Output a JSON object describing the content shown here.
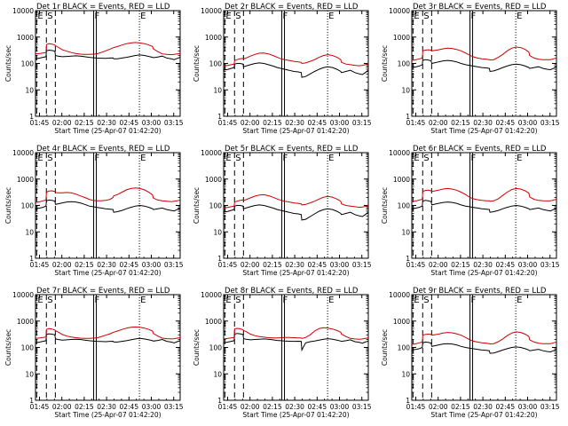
{
  "chart_data": {
    "common": {
      "type": "line",
      "xlabel": "Start Time (25-Apr-07 01:42:20)",
      "ylabel": "Counts/sec",
      "y_scale": "log",
      "ylim": [
        1,
        10000
      ],
      "y_ticks": [
        1,
        10,
        100,
        1000,
        10000
      ],
      "y_tick_labels": [
        "1",
        "10",
        "100",
        "1000",
        "10000"
      ],
      "xlim_minutes": [
        0,
        97
      ],
      "x_tick_minutes": [
        2.67,
        17.67,
        32.67,
        47.67,
        62.67,
        77.67,
        92.67
      ],
      "x_tick_labels": [
        "01:45",
        "02:00",
        "02:15",
        "02:30",
        "02:45",
        "03:00",
        "03:15"
      ],
      "legend": "in title",
      "markers": [
        {
          "label": "E",
          "x": 0.8,
          "style": "dashed"
        },
        {
          "label": "S",
          "x": 7.3,
          "style": "dashed"
        },
        {
          "label": "",
          "x": 13.3,
          "style": "dashed"
        },
        {
          "label": "F",
          "x": 39.0,
          "style": "solid"
        },
        {
          "label": "E",
          "x": 69.7,
          "style": "dotted"
        }
      ],
      "x": [
        0,
        3,
        5,
        7,
        7.4,
        9,
        11,
        13,
        13.4,
        15,
        18,
        21,
        24,
        27,
        30,
        33,
        36,
        38.5,
        41,
        44,
        47,
        50,
        52,
        52.4,
        55,
        58,
        61,
        64,
        67,
        70,
        73,
        76,
        78.5,
        79,
        82,
        85,
        88,
        91,
        93,
        95,
        97
      ]
    },
    "panels": [
      {
        "title": "Det 1r BLACK = Events, RED = LLD",
        "series": [
          {
            "name": "Events",
            "color": "#000000",
            "values": [
              150,
              160,
              170,
              180,
              300,
              320,
              310,
              290,
              200,
              190,
              180,
              185,
              190,
              195,
              190,
              180,
              170,
              165,
              160,
              158,
              156,
              160,
              162,
              150,
              150,
              160,
              170,
              185,
              200,
              210,
              200,
              185,
              170,
              165,
              175,
              190,
              160,
              150,
              140,
              155,
              170
            ]
          },
          {
            "name": "LLD",
            "color": "#cc0000",
            "values": [
              230,
              240,
              250,
              260,
              520,
              560,
              540,
              500,
              470,
              420,
              330,
              290,
              260,
              240,
              225,
              220,
              220,
              225,
              230,
              260,
              300,
              350,
              390,
              400,
              440,
              500,
              560,
              600,
              620,
              600,
              560,
              500,
              440,
              360,
              280,
              230,
              220,
              215,
              220,
              230,
              240
            ]
          }
        ]
      },
      {
        "title": "Det 2r BLACK = Events, RED = LLD",
        "series": [
          {
            "name": "Events",
            "color": "#000000",
            "values": [
              55,
              60,
              65,
              70,
              95,
              100,
              100,
              95,
              75,
              80,
              90,
              100,
              105,
              100,
              90,
              80,
              70,
              65,
              60,
              55,
              50,
              48,
              45,
              30,
              32,
              40,
              50,
              60,
              70,
              75,
              70,
              60,
              50,
              45,
              50,
              55,
              45,
              40,
              38,
              45,
              55
            ]
          },
          {
            "name": "LLD",
            "color": "#cc0000",
            "values": [
              80,
              85,
              90,
              95,
              130,
              140,
              150,
              155,
              150,
              160,
              190,
              220,
              245,
              250,
              230,
              200,
              170,
              150,
              140,
              130,
              120,
              115,
              110,
              100,
              105,
              120,
              140,
              170,
              200,
              215,
              200,
              170,
              140,
              110,
              95,
              90,
              85,
              82,
              85,
              90,
              100
            ]
          }
        ]
      },
      {
        "title": "Det 3r BLACK = Events, RED = LLD",
        "series": [
          {
            "name": "Events",
            "color": "#000000",
            "values": [
              70,
              75,
              80,
              90,
              130,
              140,
              135,
              125,
              100,
              105,
              115,
              125,
              130,
              125,
              115,
              100,
              90,
              85,
              80,
              75,
              70,
              68,
              65,
              50,
              52,
              60,
              70,
              80,
              90,
              95,
              90,
              80,
              70,
              65,
              70,
              75,
              65,
              60,
              58,
              65,
              75
            ]
          },
          {
            "name": "LLD",
            "color": "#cc0000",
            "values": [
              130,
              140,
              150,
              160,
              300,
              320,
              330,
              320,
              300,
              310,
              330,
              360,
              380,
              370,
              340,
              300,
              250,
              210,
              180,
              160,
              150,
              145,
              140,
              135,
              140,
              170,
              220,
              300,
              380,
              420,
              400,
              340,
              270,
              200,
              160,
              145,
              140,
              138,
              140,
              150,
              160
            ]
          }
        ]
      },
      {
        "title": "Det 4r BLACK = Events, RED = LLD",
        "series": [
          {
            "name": "Events",
            "color": "#000000",
            "values": [
              75,
              80,
              85,
              95,
              150,
              160,
              155,
              145,
              110,
              115,
              125,
              135,
              140,
              135,
              125,
              110,
              95,
              90,
              85,
              80,
              75,
              72,
              70,
              55,
              58,
              65,
              75,
              85,
              95,
              100,
              95,
              85,
              75,
              70,
              75,
              80,
              70,
              65,
              62,
              70,
              80
            ]
          },
          {
            "name": "LLD",
            "color": "#cc0000",
            "values": [
              130,
              140,
              150,
              160,
              320,
              350,
              360,
              340,
              310,
              300,
              300,
              310,
              300,
              270,
              230,
              200,
              170,
              155,
              150,
              150,
              155,
              170,
              200,
              230,
              260,
              320,
              390,
              440,
              460,
              440,
              390,
              320,
              250,
              190,
              160,
              150,
              145,
              140,
              145,
              150,
              160
            ]
          }
        ]
      },
      {
        "title": "Det 5r BLACK = Events, RED = LLD",
        "series": [
          {
            "name": "Events",
            "color": "#000000",
            "values": [
              55,
              60,
              65,
              70,
              95,
              100,
              100,
              95,
              75,
              80,
              90,
              100,
              105,
              100,
              90,
              80,
              70,
              65,
              60,
              55,
              50,
              48,
              45,
              28,
              30,
              38,
              48,
              60,
              70,
              75,
              70,
              60,
              50,
              45,
              50,
              55,
              45,
              40,
              38,
              45,
              55
            ]
          },
          {
            "name": "LLD",
            "color": "#cc0000",
            "values": [
              80,
              85,
              90,
              95,
              135,
              145,
              155,
              160,
              155,
              165,
              195,
              225,
              250,
              255,
              235,
              205,
              175,
              155,
              145,
              135,
              125,
              120,
              115,
              105,
              110,
              125,
              145,
              175,
              205,
              220,
              205,
              175,
              145,
              115,
              100,
              95,
              90,
              85,
              88,
              92,
              100
            ]
          }
        ]
      },
      {
        "title": "Det 6r BLACK = Events, RED = LLD",
        "series": [
          {
            "name": "Events",
            "color": "#000000",
            "values": [
              75,
              80,
              85,
              95,
              145,
              155,
              150,
              140,
              105,
              110,
              120,
              130,
              135,
              130,
              120,
              105,
              95,
              90,
              85,
              80,
              75,
              72,
              70,
              55,
              58,
              65,
              75,
              85,
              95,
              100,
              95,
              85,
              75,
              70,
              75,
              80,
              70,
              65,
              62,
              70,
              80
            ]
          },
          {
            "name": "LLD",
            "color": "#cc0000",
            "values": [
              140,
              150,
              160,
              170,
              340,
              370,
              380,
              360,
              340,
              350,
              380,
              420,
              440,
              420,
              380,
              320,
              260,
              210,
              180,
              165,
              155,
              150,
              150,
              145,
              150,
              180,
              240,
              320,
              400,
              440,
              420,
              360,
              290,
              210,
              170,
              155,
              150,
              148,
              150,
              160,
              170
            ]
          }
        ]
      },
      {
        "title": "Det 7r BLACK = Events, RED = LLD",
        "series": [
          {
            "name": "Events",
            "color": "#000000",
            "values": [
              150,
              160,
              170,
              180,
              310,
              330,
              320,
              300,
              210,
              200,
              190,
              195,
              200,
              205,
              200,
              190,
              180,
              175,
              170,
              168,
              166,
              170,
              172,
              160,
              160,
              170,
              180,
              195,
              210,
              220,
              210,
              195,
              180,
              175,
              185,
              200,
              170,
              160,
              150,
              165,
              180
            ]
          },
          {
            "name": "LLD",
            "color": "#cc0000",
            "values": [
              220,
              230,
              240,
              250,
              480,
              520,
              500,
              460,
              430,
              390,
              310,
              270,
              250,
              235,
              225,
              220,
              220,
              225,
              230,
              255,
              290,
              330,
              370,
              380,
              420,
              480,
              540,
              580,
              600,
              580,
              540,
              480,
              420,
              340,
              270,
              225,
              215,
              210,
              215,
              225,
              235
            ]
          }
        ]
      },
      {
        "title": "Det 8r BLACK = Events, RED = LLD",
        "series": [
          {
            "name": "Events",
            "color": "#000000",
            "values": [
              150,
              160,
              170,
              180,
              320,
              340,
              330,
              310,
              215,
              205,
              195,
              200,
              205,
              210,
              205,
              195,
              185,
              180,
              175,
              172,
              170,
              172,
              170,
              80,
              150,
              165,
              175,
              190,
              205,
              215,
              205,
              190,
              175,
              170,
              180,
              195,
              165,
              155,
              145,
              160,
              175
            ]
          },
          {
            "name": "LLD",
            "color": "#cc0000",
            "values": [
              210,
              220,
              230,
              240,
              500,
              530,
              510,
              470,
              440,
              400,
              320,
              280,
              260,
              245,
              235,
              230,
              230,
              235,
              240,
              240,
              235,
              230,
              230,
              220,
              240,
              300,
              420,
              520,
              560,
              540,
              500,
              440,
              380,
              320,
              260,
              220,
              210,
              205,
              210,
              220,
              230
            ]
          }
        ]
      },
      {
        "title": "Det 9r BLACK = Events, RED = LLD",
        "series": [
          {
            "name": "Events",
            "color": "#000000",
            "values": [
              80,
              85,
              90,
              100,
              150,
              160,
              155,
              145,
              110,
              115,
              125,
              135,
              140,
              135,
              125,
              110,
              100,
              95,
              90,
              85,
              80,
              78,
              75,
              60,
              62,
              70,
              80,
              90,
              100,
              105,
              100,
              90,
              80,
              75,
              80,
              85,
              75,
              70,
              68,
              75,
              85
            ]
          },
          {
            "name": "LLD",
            "color": "#cc0000",
            "values": [
              130,
              140,
              150,
              160,
              290,
              310,
              320,
              310,
              290,
              300,
              320,
              350,
              370,
              360,
              330,
              290,
              240,
              200,
              175,
              160,
              150,
              145,
              140,
              135,
              140,
              165,
              210,
              280,
              350,
              390,
              370,
              320,
              260,
              195,
              160,
              145,
              140,
              138,
              140,
              150,
              160
            ]
          }
        ]
      }
    ]
  }
}
